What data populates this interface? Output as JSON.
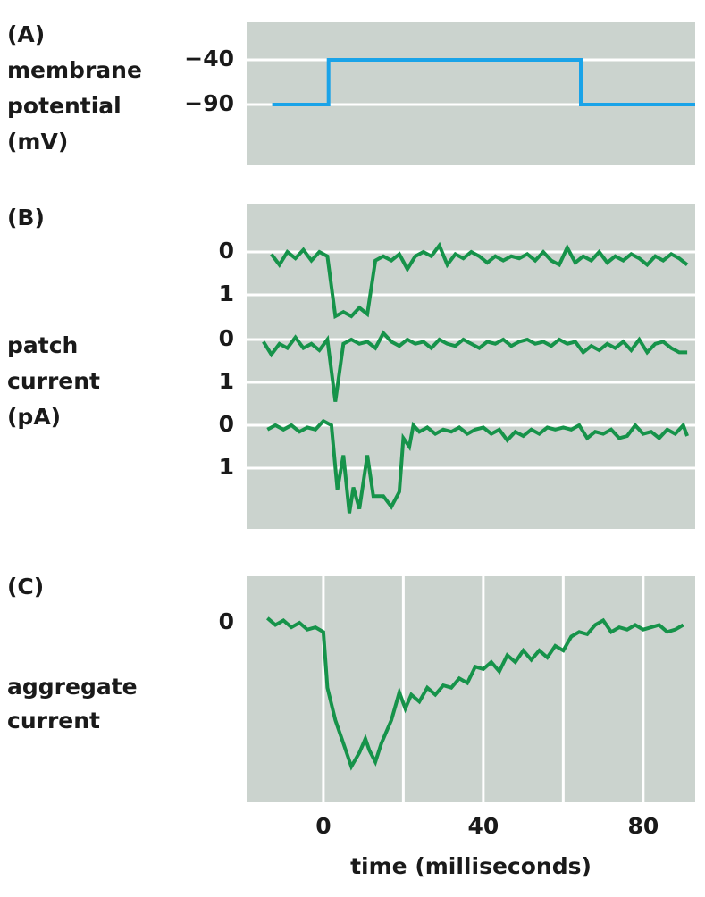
{
  "chart_data": [
    {
      "type": "line",
      "title": "(A)",
      "ylabel": [
        "membrane",
        "potential",
        "(mV)"
      ],
      "xlim": [
        -19.2,
        93
      ],
      "ylim": [
        2,
        -158
      ],
      "yticks": [
        {
          "value": -40,
          "label": "−40"
        },
        {
          "value": -90,
          "label": "−90"
        }
      ],
      "grid": "y",
      "series": [
        {
          "color": "#1aa3e8",
          "x": [
            -12.8,
            1.3,
            1.3,
            64.4,
            64.4,
            93
          ],
          "values": [
            -90,
            -90,
            -40,
            -40,
            -90,
            -90
          ]
        }
      ]
    },
    {
      "type": "line",
      "title": "(B)",
      "ylabel": [
        "patch",
        "current",
        "(pA)"
      ],
      "xlim": [
        -19.2,
        93
      ],
      "grid": "y",
      "series": [
        {
          "color": "#16934a",
          "ylim": [
            -1.125,
            1.5
          ],
          "yticks": [
            0,
            1
          ],
          "x": [
            -13,
            -11,
            -9,
            -7,
            -5,
            -3,
            -1,
            1,
            3,
            5,
            7,
            9,
            11,
            13,
            15,
            17,
            19,
            21,
            23,
            25,
            27,
            29,
            31,
            33,
            35,
            37,
            39,
            41,
            43,
            45,
            47,
            49,
            51,
            53,
            55,
            57,
            59,
            61,
            63,
            65,
            67,
            69,
            71,
            73,
            75,
            77,
            79,
            81,
            83,
            85,
            87,
            89,
            91
          ],
          "values": [
            0.05,
            0.3,
            0.0,
            0.15,
            -0.05,
            0.2,
            0.0,
            0.1,
            1.5,
            1.4,
            1.5,
            1.3,
            1.45,
            0.2,
            0.1,
            0.2,
            0.05,
            0.4,
            0.1,
            0.0,
            0.1,
            -0.15,
            0.3,
            0.05,
            0.15,
            0.0,
            0.1,
            0.25,
            0.1,
            0.2,
            0.1,
            0.15,
            0.05,
            0.2,
            0.0,
            0.2,
            0.3,
            -0.1,
            0.25,
            0.1,
            0.2,
            0.0,
            0.25,
            0.1,
            0.2,
            0.05,
            0.15,
            0.3,
            0.1,
            0.2,
            0.05,
            0.15,
            0.3
          ]
        },
        {
          "color": "#16934a",
          "ylim": [
            -0.5,
            1.5
          ],
          "yticks": [
            0,
            1
          ],
          "x": [
            -15,
            -13,
            -11,
            -9,
            -7,
            -5,
            -3,
            -1,
            1,
            3,
            5,
            7,
            9,
            11,
            13,
            15,
            17,
            19,
            21,
            23,
            25,
            27,
            29,
            31,
            33,
            35,
            37,
            39,
            41,
            43,
            45,
            47,
            49,
            51,
            53,
            55,
            57,
            59,
            61,
            63,
            65,
            67,
            69,
            71,
            73,
            75,
            77,
            79,
            81,
            83,
            85,
            87,
            89,
            91
          ],
          "values": [
            0.05,
            0.35,
            0.1,
            0.2,
            -0.05,
            0.2,
            0.1,
            0.25,
            0.0,
            1.45,
            0.1,
            0.0,
            0.1,
            0.05,
            0.2,
            -0.15,
            0.05,
            0.15,
            0.0,
            0.1,
            0.05,
            0.2,
            0.0,
            0.1,
            0.15,
            0.0,
            0.1,
            0.2,
            0.05,
            0.1,
            0.0,
            0.15,
            0.05,
            0.0,
            0.1,
            0.05,
            0.15,
            0.0,
            0.1,
            0.05,
            0.3,
            0.15,
            0.25,
            0.1,
            0.2,
            0.05,
            0.25,
            0.0,
            0.3,
            0.1,
            0.05,
            0.2,
            0.3,
            0.3
          ]
        },
        {
          "color": "#16934a",
          "ylim": [
            -0.5,
            2.417
          ],
          "yticks": [
            0,
            1
          ],
          "x": [
            -14,
            -12,
            -10,
            -8,
            -6,
            -4,
            -2,
            0,
            2,
            3.5,
            5,
            6.5,
            7.5,
            9,
            11,
            12.5,
            15,
            17,
            19,
            20,
            21.5,
            22.5,
            24,
            26,
            28,
            30,
            32,
            34,
            36,
            38,
            40,
            42,
            44,
            46,
            48,
            50,
            52,
            54,
            56,
            58,
            60,
            62,
            64,
            66,
            68,
            70,
            72,
            74,
            76,
            78,
            80,
            82,
            84,
            86,
            88,
            90,
            91
          ],
          "values": [
            0.1,
            0.0,
            0.1,
            0.0,
            0.15,
            0.05,
            0.1,
            -0.1,
            0.0,
            1.5,
            0.7,
            2.05,
            1.45,
            1.95,
            0.7,
            1.65,
            1.65,
            1.9,
            1.55,
            0.3,
            0.5,
            0.0,
            0.15,
            0.05,
            0.2,
            0.1,
            0.15,
            0.05,
            0.2,
            0.1,
            0.05,
            0.2,
            0.1,
            0.35,
            0.15,
            0.25,
            0.1,
            0.2,
            0.05,
            0.1,
            0.05,
            0.1,
            0.0,
            0.3,
            0.15,
            0.2,
            0.1,
            0.3,
            0.25,
            0.0,
            0.2,
            0.15,
            0.3,
            0.1,
            0.2,
            0.0,
            0.25
          ]
        }
      ]
    },
    {
      "type": "line",
      "title": "(C)",
      "ylabel": [
        "aggregate",
        "current"
      ],
      "xlabel": "time (milliseconds)",
      "xlim": [
        -19.2,
        93
      ],
      "ylim": [
        -1,
        3.87
      ],
      "yticks": [
        0
      ],
      "xticks": [
        0,
        40,
        80
      ],
      "xgrid": [
        0,
        20,
        40,
        60,
        80
      ],
      "grid": "x",
      "series": [
        {
          "color": "#16934a",
          "x": [
            -14,
            -12,
            -10,
            -8,
            -6,
            -4,
            -2,
            0,
            1,
            3,
            5,
            7,
            9,
            10.5,
            11.5,
            13,
            14.5,
            17,
            19,
            20.5,
            22,
            24,
            26,
            28,
            30,
            32,
            34,
            36,
            38,
            40,
            42,
            44,
            46,
            48,
            50,
            52,
            54,
            56,
            58,
            60,
            62,
            64,
            66,
            68,
            70,
            72,
            74,
            76,
            78,
            80,
            82,
            84,
            86,
            88,
            90
          ],
          "values": [
            -0.1,
            0.05,
            -0.05,
            0.1,
            0.0,
            0.15,
            0.1,
            0.2,
            1.4,
            2.1,
            2.6,
            3.1,
            2.8,
            2.5,
            2.75,
            3.0,
            2.6,
            2.1,
            1.5,
            1.85,
            1.55,
            1.7,
            1.4,
            1.55,
            1.35,
            1.4,
            1.2,
            1.3,
            0.95,
            1.0,
            0.85,
            1.05,
            0.7,
            0.85,
            0.6,
            0.8,
            0.6,
            0.75,
            0.5,
            0.6,
            0.3,
            0.2,
            0.25,
            0.05,
            -0.05,
            0.2,
            0.1,
            0.15,
            0.05,
            0.15,
            0.1,
            0.05,
            0.2,
            0.15,
            0.05
          ]
        }
      ]
    }
  ]
}
